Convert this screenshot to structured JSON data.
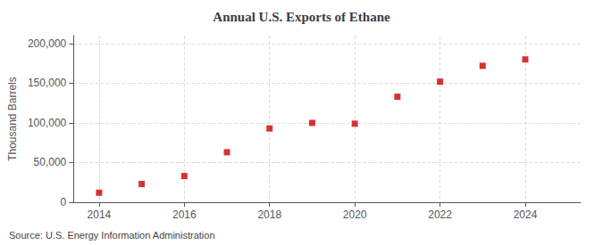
{
  "chart_data": {
    "type": "scatter",
    "title": "Annual U.S. Exports of Ethane",
    "ylabel": "Thousand Barrels",
    "source": "Source: U.S. Energy Information Administration",
    "x": [
      2014,
      2015,
      2016,
      2017,
      2018,
      2019,
      2020,
      2021,
      2022,
      2023,
      2024
    ],
    "values": [
      12000,
      23000,
      33000,
      63000,
      93000,
      100000,
      99000,
      133000,
      152000,
      172000,
      180000
    ],
    "color": "#cc0000",
    "marker": "square",
    "xlim": [
      2013.4,
      2025.3
    ],
    "xticks": [
      2014,
      2016,
      2018,
      2020,
      2022,
      2024
    ],
    "ylim": [
      0,
      210000
    ],
    "yticks": [
      0,
      {
        "value": 50000,
        "label": "50,000"
      },
      {
        "value": 100000,
        "label": "100,000"
      },
      {
        "value": 150000,
        "label": "150,000"
      },
      {
        "value": 200000,
        "label": "200,000"
      }
    ],
    "grid": true
  }
}
